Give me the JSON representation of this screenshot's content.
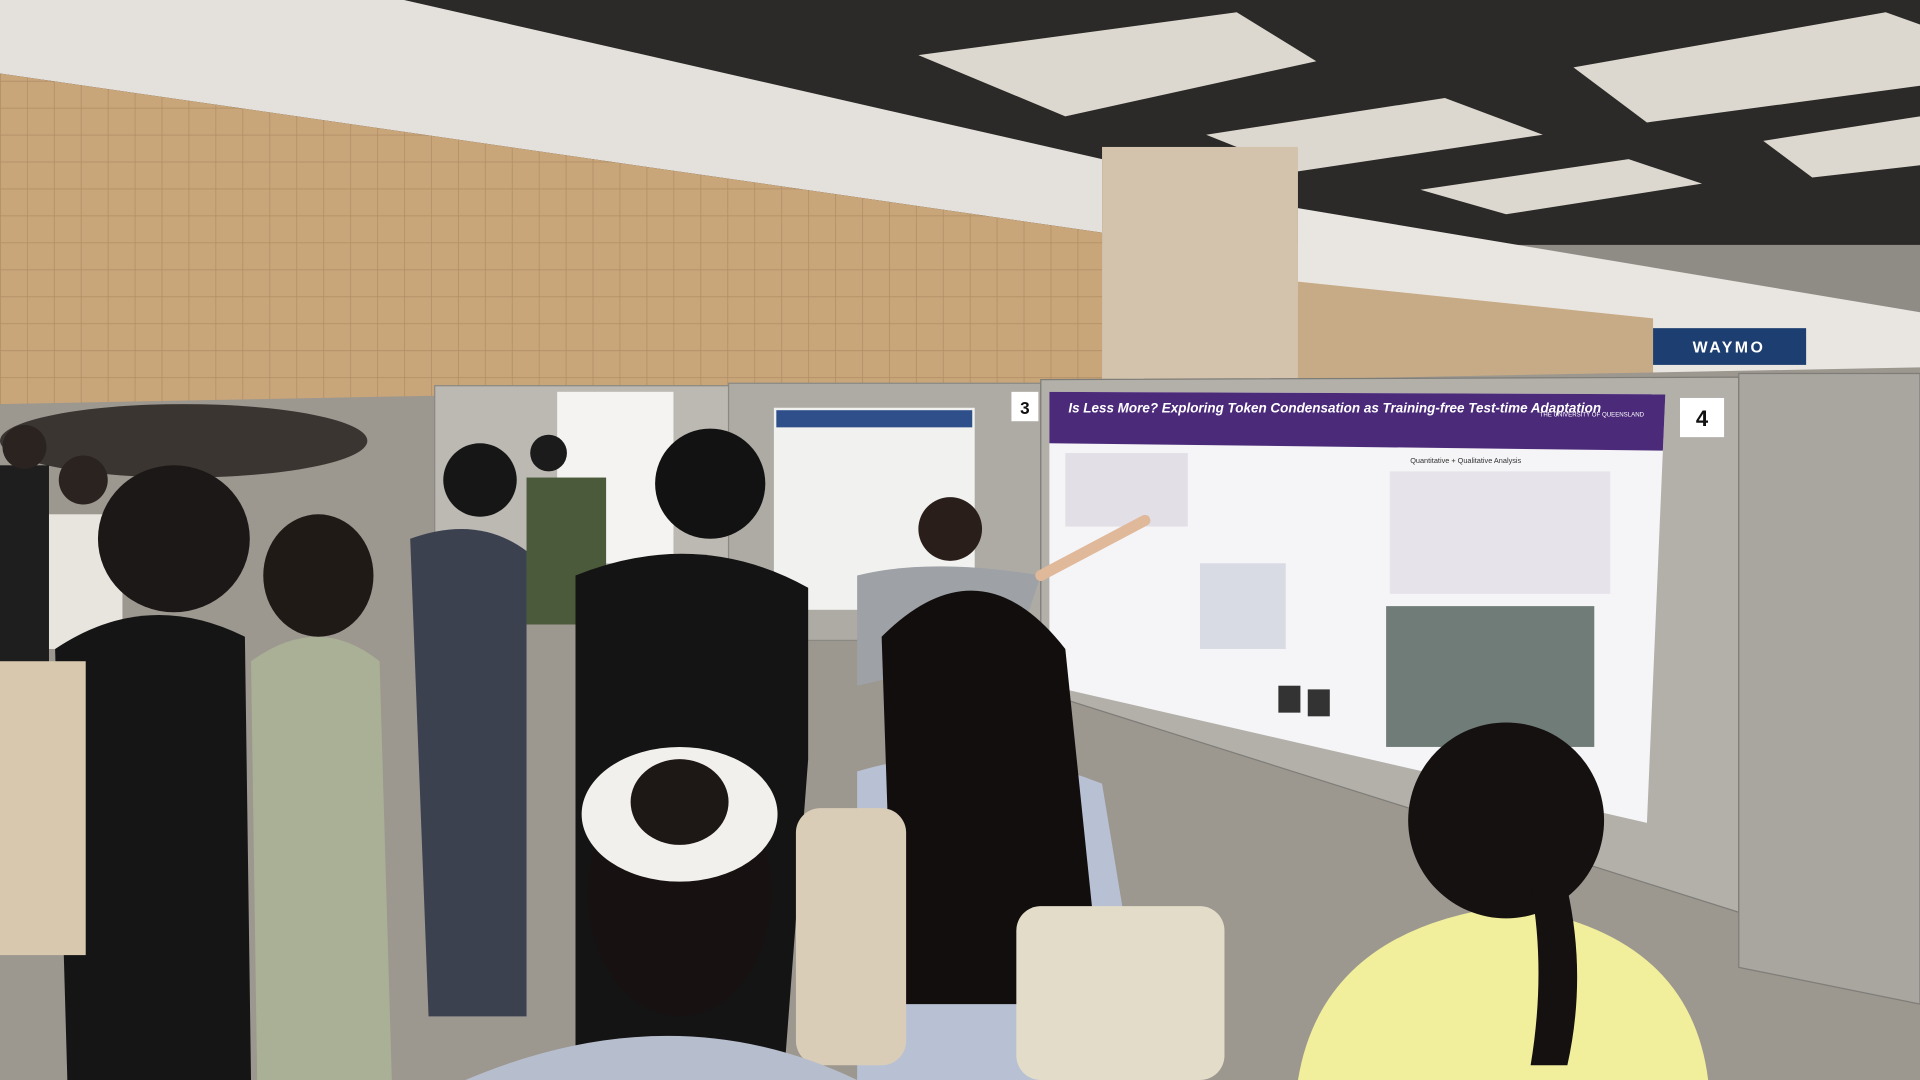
{
  "scene": {
    "poster_title": "Is Less More? Exploring Token Condensation as Training-free Test-time Adaptation",
    "poster_university": "THE UNIVERSITY OF QUEENSLAND",
    "poster_section": "Quantitative + Qualitative Analysis",
    "board_numbers": [
      "3",
      "4"
    ],
    "sign": "WAYMO"
  }
}
